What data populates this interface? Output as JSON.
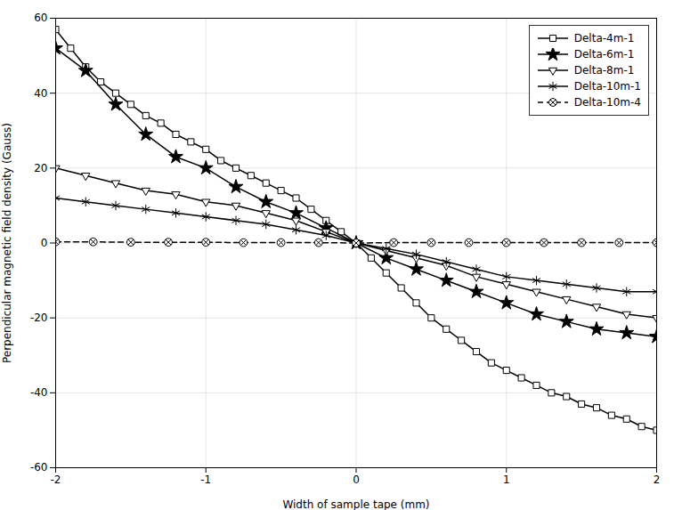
{
  "chart_data": {
    "type": "line",
    "xlabel": "Width of sample tape (mm)",
    "ylabel": "Perpendicular magnetic field density (Gauss)",
    "xlim": [
      -2,
      2
    ],
    "ylim": [
      -60,
      60
    ],
    "xticks": [
      -2,
      -1,
      0,
      1,
      2
    ],
    "yticks": [
      -60,
      -40,
      -20,
      0,
      20,
      40,
      60
    ],
    "grid": true,
    "legend": "upper right",
    "series": [
      {
        "name": "Delta-4m-1",
        "color": "#000000",
        "marker": "square",
        "line_style": "solid",
        "x": [
          -2.0,
          -1.9,
          -1.8,
          -1.7,
          -1.6,
          -1.5,
          -1.4,
          -1.3,
          -1.2,
          -1.1,
          -1.0,
          -0.9,
          -0.8,
          -0.7,
          -0.6,
          -0.5,
          -0.4,
          -0.3,
          -0.2,
          -0.1,
          0.0,
          0.1,
          0.2,
          0.3,
          0.4,
          0.5,
          0.6,
          0.7,
          0.8,
          0.9,
          1.0,
          1.1,
          1.2,
          1.3,
          1.4,
          1.5,
          1.6,
          1.7,
          1.8,
          1.9,
          2.0
        ],
        "values": [
          57,
          52,
          47,
          43,
          40,
          37,
          34,
          32,
          29,
          27,
          25,
          22,
          20,
          18,
          16,
          14,
          12,
          9,
          6,
          3,
          0,
          -4,
          -8,
          -12,
          -16,
          -20,
          -23,
          -26,
          -29,
          -32,
          -34,
          -36,
          -38,
          -40,
          -41,
          -43,
          -44,
          -46,
          -47,
          -49,
          -50
        ]
      },
      {
        "name": "Delta-6m-1",
        "color": "#000000",
        "marker": "star",
        "line_style": "solid",
        "x": [
          -2.0,
          -1.8,
          -1.6,
          -1.4,
          -1.2,
          -1.0,
          -0.8,
          -0.6,
          -0.4,
          -0.2,
          0.0,
          0.2,
          0.4,
          0.6,
          0.8,
          1.0,
          1.2,
          1.4,
          1.6,
          1.8,
          2.0
        ],
        "values": [
          52,
          46,
          37,
          29,
          23,
          20,
          15,
          11,
          8,
          4,
          0,
          -4,
          -7,
          -10,
          -13,
          -16,
          -19,
          -21,
          -23,
          -24,
          -25
        ]
      },
      {
        "name": "Delta-8m-1",
        "color": "#000000",
        "marker": "triangle_down",
        "line_style": "solid",
        "x": [
          -2.0,
          -1.8,
          -1.6,
          -1.4,
          -1.2,
          -1.0,
          -0.8,
          -0.6,
          -0.4,
          -0.2,
          0.0,
          0.2,
          0.4,
          0.6,
          0.8,
          1.0,
          1.2,
          1.4,
          1.6,
          1.8,
          2.0
        ],
        "values": [
          20,
          18,
          16,
          14,
          13,
          11,
          10,
          8,
          6,
          3,
          0,
          -2,
          -4,
          -6,
          -9,
          -11,
          -13,
          -15,
          -17,
          -19,
          -20
        ]
      },
      {
        "name": "Delta-10m-1",
        "color": "#000000",
        "marker": "asterisk",
        "line_style": "solid",
        "x": [
          -2.0,
          -1.8,
          -1.6,
          -1.4,
          -1.2,
          -1.0,
          -0.8,
          -0.6,
          -0.4,
          -0.2,
          0.0,
          0.2,
          0.4,
          0.6,
          0.8,
          1.0,
          1.2,
          1.4,
          1.6,
          1.8,
          2.0
        ],
        "values": [
          12,
          11,
          10,
          9,
          8,
          7,
          6,
          5,
          3.5,
          2,
          0,
          -1.5,
          -3,
          -5,
          -7,
          -9,
          -10,
          -11,
          -12,
          -13,
          -13
        ]
      },
      {
        "name": "Delta-10m-4",
        "color": "#000000",
        "marker": "circle_x",
        "line_style": "dashed",
        "x": [
          -2.0,
          -1.75,
          -1.5,
          -1.25,
          -1.0,
          -0.75,
          -0.5,
          -0.25,
          0.0,
          0.25,
          0.5,
          0.75,
          1.0,
          1.25,
          1.5,
          1.75,
          2.0
        ],
        "values": [
          0.3,
          0.3,
          0.2,
          0.2,
          0.2,
          0.1,
          0.1,
          0.1,
          0,
          0.1,
          0.1,
          0.1,
          0.1,
          0.1,
          0.1,
          0.1,
          0.1
        ]
      }
    ]
  }
}
